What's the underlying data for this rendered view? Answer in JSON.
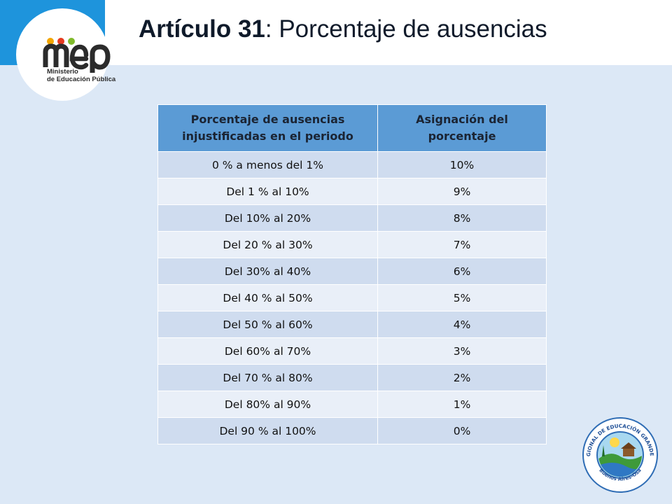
{
  "header": {
    "title_bold": "Artículo 31",
    "title_rest": ": Porcentaje de ausencias"
  },
  "logo": {
    "brand": "mep",
    "line1": "Ministerio",
    "line2": "de Educación Pública"
  },
  "table": {
    "headers": [
      "Porcentaje de ausencias injustificadas en el periodo",
      "Asignación del porcentaje"
    ],
    "rows": [
      [
        "0 % a menos del 1%",
        "10%"
      ],
      [
        "Del 1 % al 10%",
        "9%"
      ],
      [
        "Del 10% al 20%",
        "8%"
      ],
      [
        "Del 20 % al 30%",
        "7%"
      ],
      [
        "Del 30% al 40%",
        "6%"
      ],
      [
        "Del 40 % al 50%",
        "5%"
      ],
      [
        "Del 50 % al 60%",
        "4%"
      ],
      [
        "Del 60% al 70%",
        "3%"
      ],
      [
        "Del 70 % al 80%",
        "2%"
      ],
      [
        "Del 80% al 90%",
        "1%"
      ],
      [
        "Del 90 % al 100%",
        "0%"
      ]
    ]
  },
  "seal": {
    "text_top": "DIRECCIÓN REGIONAL DE EDUCACIÓN GRANDE DEL TÉRRABA",
    "text_bottom": "Buenos Aires-Osa"
  },
  "colors": {
    "background": "#dce8f6",
    "header_band": "#1e94dc",
    "table_header": "#5b9bd5",
    "row_dark": "#cfdcef",
    "row_light": "#e9eff8"
  }
}
